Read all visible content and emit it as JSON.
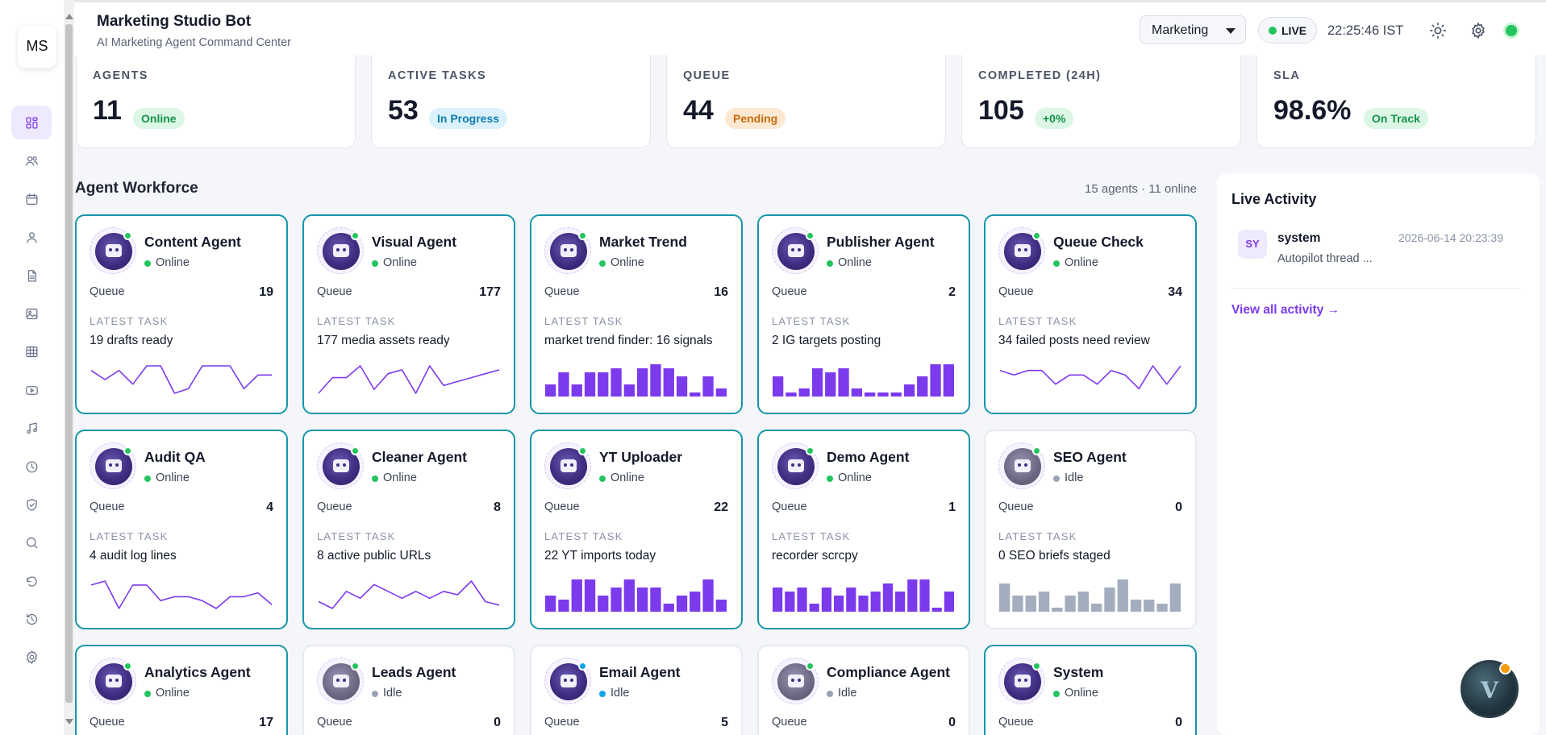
{
  "header": {
    "title": "Marketing Studio Bot",
    "subtitle": "AI Marketing Agent Command Center",
    "workspace": "Marketing",
    "live_label": "LIVE",
    "clock": "22:25:46 IST"
  },
  "sidebar": {
    "logo": "MS",
    "items": [
      "dashboard-icon",
      "users-icon",
      "calendar-icon",
      "user-icon",
      "document-icon",
      "image-icon",
      "table-icon",
      "video-icon",
      "music-icon",
      "clock-icon",
      "shield-icon",
      "search-icon",
      "refresh-icon",
      "history-icon",
      "settings-icon"
    ]
  },
  "stats": [
    {
      "label": "AGENTS",
      "value": "11",
      "badge": "Online",
      "tone": "green"
    },
    {
      "label": "ACTIVE TASKS",
      "value": "53",
      "badge": "In Progress",
      "tone": "blue"
    },
    {
      "label": "QUEUE",
      "value": "44",
      "badge": "Pending",
      "tone": "orange"
    },
    {
      "label": "COMPLETED (24H)",
      "value": "105",
      "badge": "+0%",
      "tone": "green"
    },
    {
      "label": "SLA",
      "value": "98.6%",
      "badge": "On Track",
      "tone": "green"
    }
  ],
  "workforce": {
    "title": "Agent Workforce",
    "meta": "15 agents · 11 online",
    "queue_label": "Queue",
    "latest_label": "LATEST TASK"
  },
  "agents": [
    {
      "name": "Content Agent",
      "status": "Online",
      "queue": "19",
      "latest": "19 drafts ready",
      "highlight": true,
      "spark": "line",
      "series": [
        5,
        3,
        5,
        2,
        6,
        6,
        0,
        1,
        6,
        6,
        6,
        1,
        4,
        4
      ]
    },
    {
      "name": "Visual Agent",
      "status": "Online",
      "queue": "177",
      "latest": "177 media assets ready",
      "highlight": true,
      "spark": "line",
      "series": [
        0,
        4,
        4,
        7,
        1,
        5,
        6,
        0,
        7,
        2,
        3,
        4,
        5,
        6
      ]
    },
    {
      "name": "Market Trend",
      "status": "Online",
      "queue": "16",
      "latest": "market trend finder: 16 signals",
      "highlight": true,
      "spark": "bar",
      "series": [
        3,
        6,
        3,
        6,
        6,
        7,
        3,
        7,
        8,
        7,
        5,
        1,
        5,
        2
      ]
    },
    {
      "name": "Publisher Agent",
      "status": "Online",
      "queue": "2",
      "latest": "2 IG targets posting",
      "highlight": true,
      "spark": "bar",
      "series": [
        5,
        1,
        2,
        7,
        6,
        7,
        2,
        1,
        1,
        1,
        3,
        5,
        8,
        8
      ]
    },
    {
      "name": "Queue Check",
      "status": "Online",
      "queue": "34",
      "latest": "34 failed posts need review",
      "highlight": true,
      "spark": "line",
      "series": [
        5,
        4,
        5,
        5,
        2,
        4,
        4,
        2,
        5,
        4,
        1,
        6,
        2,
        6
      ]
    },
    {
      "name": "Audit QA",
      "status": "Online",
      "queue": "4",
      "latest": "4 audit log lines",
      "highlight": true,
      "spark": "line",
      "series": [
        6,
        7,
        0,
        6,
        6,
        2,
        3,
        3,
        2,
        0,
        3,
        3,
        4,
        1
      ]
    },
    {
      "name": "Cleaner Agent",
      "status": "Online",
      "queue": "8",
      "latest": "8 active public URLs",
      "highlight": true,
      "spark": "line",
      "series": [
        2,
        0,
        5,
        3,
        7,
        5,
        3,
        5,
        3,
        5,
        4,
        8,
        2,
        1
      ]
    },
    {
      "name": "YT Uploader",
      "status": "Online",
      "queue": "22",
      "latest": "22 YT imports today",
      "highlight": true,
      "spark": "bar",
      "series": [
        4,
        3,
        8,
        8,
        4,
        6,
        8,
        6,
        6,
        2,
        4,
        5,
        8,
        3
      ]
    },
    {
      "name": "Demo Agent",
      "status": "Online",
      "queue": "1",
      "latest": "recorder scrcpy",
      "highlight": true,
      "spark": "bar",
      "series": [
        6,
        5,
        6,
        2,
        6,
        4,
        6,
        4,
        5,
        7,
        5,
        8,
        8,
        1,
        5
      ]
    },
    {
      "name": "SEO Agent",
      "status": "Idle",
      "queue": "0",
      "latest": "0 SEO briefs staged",
      "highlight": false,
      "spark": "bar-gray",
      "series": [
        7,
        4,
        4,
        5,
        1,
        4,
        5,
        2,
        6,
        8,
        3,
        3,
        2,
        7
      ]
    },
    {
      "name": "Analytics Agent",
      "status": "Online",
      "queue": "17",
      "latest": "",
      "highlight": true,
      "spark": "none",
      "series": []
    },
    {
      "name": "Leads Agent",
      "status": "Idle",
      "queue": "0",
      "latest": "",
      "highlight": false,
      "spark": "none",
      "series": []
    },
    {
      "name": "Email Agent",
      "status": "Idle",
      "queue": "5",
      "latest": "",
      "highlight": false,
      "spark": "none",
      "series": [],
      "dot": "blue"
    },
    {
      "name": "Compliance Agent",
      "status": "Idle",
      "queue": "0",
      "latest": "",
      "highlight": false,
      "spark": "none",
      "series": []
    },
    {
      "name": "System",
      "status": "Online",
      "queue": "0",
      "latest": "",
      "highlight": true,
      "spark": "none",
      "series": []
    }
  ],
  "activity": {
    "title": "Live Activity",
    "items": [
      {
        "initials": "SY",
        "user": "system",
        "time": "2026-06-14 20:23:39",
        "message": "Autopilot thread ..."
      }
    ],
    "link": "View all activity →"
  },
  "fab": {
    "letter": "V"
  },
  "colors": {
    "accent": "#7c3aed",
    "highlight_border": "#1596a8",
    "online": "#22c55e",
    "idle": "#9aa3b5",
    "chart": "#7c3aed",
    "chart_idle": "#a3adbd"
  }
}
